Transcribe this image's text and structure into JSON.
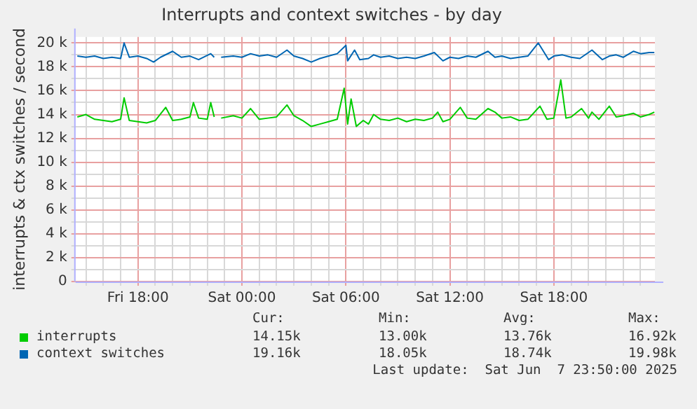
{
  "chart_data": {
    "type": "line",
    "title": "Interrupts and context switches - by day",
    "ylabel": "interrupts & ctx switches / second",
    "xlim": [
      "2025-06-06T14:24",
      "2025-06-07T23:50"
    ],
    "xticks": [
      {
        "value": "2025-06-06T15:00",
        "label": null
      },
      {
        "value": "2025-06-06T16:00",
        "label": null
      },
      {
        "value": "2025-06-06T17:00",
        "label": null
      },
      {
        "value": "2025-06-06T18:00",
        "label": "Fri 18:00"
      },
      {
        "value": "2025-06-06T19:00",
        "label": null
      },
      {
        "value": "2025-06-06T20:00",
        "label": null
      },
      {
        "value": "2025-06-06T21:00",
        "label": null
      },
      {
        "value": "2025-06-06T22:00",
        "label": null
      },
      {
        "value": "2025-06-06T23:00",
        "label": null
      },
      {
        "value": "2025-06-07T00:00",
        "label": "Sat 00:00"
      },
      {
        "value": "2025-06-07T01:00",
        "label": null
      },
      {
        "value": "2025-06-07T02:00",
        "label": null
      },
      {
        "value": "2025-06-07T03:00",
        "label": null
      },
      {
        "value": "2025-06-07T04:00",
        "label": null
      },
      {
        "value": "2025-06-07T05:00",
        "label": null
      },
      {
        "value": "2025-06-07T06:00",
        "label": "Sat 06:00"
      },
      {
        "value": "2025-06-07T07:00",
        "label": null
      },
      {
        "value": "2025-06-07T08:00",
        "label": null
      },
      {
        "value": "2025-06-07T09:00",
        "label": null
      },
      {
        "value": "2025-06-07T10:00",
        "label": null
      },
      {
        "value": "2025-06-07T11:00",
        "label": null
      },
      {
        "value": "2025-06-07T12:00",
        "label": "Sat 12:00"
      },
      {
        "value": "2025-06-07T13:00",
        "label": null
      },
      {
        "value": "2025-06-07T14:00",
        "label": null
      },
      {
        "value": "2025-06-07T15:00",
        "label": null
      },
      {
        "value": "2025-06-07T16:00",
        "label": null
      },
      {
        "value": "2025-06-07T17:00",
        "label": null
      },
      {
        "value": "2025-06-07T18:00",
        "label": "Sat 18:00"
      },
      {
        "value": "2025-06-07T19:00",
        "label": null
      },
      {
        "value": "2025-06-07T20:00",
        "label": null
      },
      {
        "value": "2025-06-07T21:00",
        "label": null
      },
      {
        "value": "2025-06-07T22:00",
        "label": null
      },
      {
        "value": "2025-06-07T23:00",
        "label": null
      }
    ],
    "ylim": [
      0,
      20500
    ],
    "yticks": [
      {
        "value": 0,
        "label": "0"
      },
      {
        "value": 1000,
        "label": null
      },
      {
        "value": 2000,
        "label": "2 k"
      },
      {
        "value": 3000,
        "label": null
      },
      {
        "value": 4000,
        "label": "4 k"
      },
      {
        "value": 5000,
        "label": null
      },
      {
        "value": 6000,
        "label": "6 k"
      },
      {
        "value": 7000,
        "label": null
      },
      {
        "value": 8000,
        "label": "8 k"
      },
      {
        "value": 9000,
        "label": null
      },
      {
        "value": 10000,
        "label": "10 k"
      },
      {
        "value": 11000,
        "label": null
      },
      {
        "value": 12000,
        "label": "12 k"
      },
      {
        "value": 13000,
        "label": null
      },
      {
        "value": 14000,
        "label": "14 k"
      },
      {
        "value": 15000,
        "label": null
      },
      {
        "value": 16000,
        "label": "16 k"
      },
      {
        "value": 17000,
        "label": null
      },
      {
        "value": 18000,
        "label": "18 k"
      },
      {
        "value": 19000,
        "label": null
      },
      {
        "value": 20000,
        "label": "20 k"
      }
    ],
    "grid": true,
    "legend": "bottom",
    "series": [
      {
        "name": "interrupts",
        "color": "#00cc00",
        "x": [
          "2025-06-06T14:30",
          "2025-06-06T15:00",
          "2025-06-06T15:30",
          "2025-06-06T16:00",
          "2025-06-06T16:30",
          "2025-06-06T17:00",
          "2025-06-06T17:12",
          "2025-06-06T17:30",
          "2025-06-06T18:00",
          "2025-06-06T18:30",
          "2025-06-06T19:00",
          "2025-06-06T19:36",
          "2025-06-06T20:00",
          "2025-06-06T20:30",
          "2025-06-06T21:00",
          "2025-06-06T21:12",
          "2025-06-06T21:30",
          "2025-06-06T22:00",
          "2025-06-06T22:12",
          "2025-06-06T22:24",
          "2025-06-06T22:36",
          "2025-06-06T22:48",
          "2025-06-06T23:30",
          "2025-06-07T00:00",
          "2025-06-07T00:30",
          "2025-06-07T01:00",
          "2025-06-07T01:30",
          "2025-06-07T02:00",
          "2025-06-07T02:36",
          "2025-06-07T03:00",
          "2025-06-07T03:30",
          "2025-06-07T04:00",
          "2025-06-07T04:30",
          "2025-06-07T05:00",
          "2025-06-07T05:30",
          "2025-06-07T05:54",
          "2025-06-07T06:06",
          "2025-06-07T06:18",
          "2025-06-07T06:36",
          "2025-06-07T07:00",
          "2025-06-07T07:18",
          "2025-06-07T07:36",
          "2025-06-07T08:00",
          "2025-06-07T08:30",
          "2025-06-07T09:00",
          "2025-06-07T09:30",
          "2025-06-07T10:00",
          "2025-06-07T10:30",
          "2025-06-07T11:00",
          "2025-06-07T11:18",
          "2025-06-07T11:36",
          "2025-06-07T12:00",
          "2025-06-07T12:36",
          "2025-06-07T13:00",
          "2025-06-07T13:30",
          "2025-06-07T14:12",
          "2025-06-07T14:36",
          "2025-06-07T15:00",
          "2025-06-07T15:30",
          "2025-06-07T16:00",
          "2025-06-07T16:30",
          "2025-06-07T17:12",
          "2025-06-07T17:36",
          "2025-06-07T18:00",
          "2025-06-07T18:24",
          "2025-06-07T18:42",
          "2025-06-07T19:00",
          "2025-06-07T19:36",
          "2025-06-07T20:00",
          "2025-06-07T20:12",
          "2025-06-07T20:36",
          "2025-06-07T21:12",
          "2025-06-07T21:36",
          "2025-06-07T22:00",
          "2025-06-07T22:36",
          "2025-06-07T23:00",
          "2025-06-07T23:30",
          "2025-06-07T23:48"
        ],
        "values": [
          13800,
          14000,
          13600,
          13500,
          13400,
          13600,
          15400,
          13500,
          13400,
          13300,
          13500,
          14600,
          13500,
          13600,
          13800,
          15000,
          13700,
          13600,
          15000,
          13800,
          null,
          13700,
          13900,
          13700,
          14500,
          13600,
          13700,
          13800,
          14800,
          13900,
          13500,
          13000,
          13200,
          13400,
          13600,
          16200,
          13200,
          15300,
          13000,
          13500,
          13200,
          14000,
          13600,
          13500,
          13700,
          13400,
          13600,
          13500,
          13700,
          14200,
          13400,
          13600,
          14600,
          13700,
          13600,
          14500,
          14200,
          13700,
          13800,
          13500,
          13600,
          14700,
          13600,
          13700,
          16900,
          13700,
          13800,
          14500,
          13700,
          14200,
          13600,
          14700,
          13800,
          13900,
          14100,
          13800,
          14000,
          14200
        ]
      },
      {
        "name": "context switches",
        "color": "#0066b3",
        "x": [
          "2025-06-06T14:30",
          "2025-06-06T15:00",
          "2025-06-06T15:30",
          "2025-06-06T16:00",
          "2025-06-06T16:30",
          "2025-06-06T17:00",
          "2025-06-06T17:12",
          "2025-06-06T17:30",
          "2025-06-06T18:00",
          "2025-06-06T18:30",
          "2025-06-06T18:54",
          "2025-06-06T19:18",
          "2025-06-06T20:00",
          "2025-06-06T20:30",
          "2025-06-06T21:00",
          "2025-06-06T21:30",
          "2025-06-06T22:12",
          "2025-06-06T22:24",
          "2025-06-06T22:36",
          "2025-06-06T22:48",
          "2025-06-06T23:30",
          "2025-06-07T00:00",
          "2025-06-07T00:30",
          "2025-06-07T01:00",
          "2025-06-07T01:30",
          "2025-06-07T02:00",
          "2025-06-07T02:36",
          "2025-06-07T03:00",
          "2025-06-07T03:30",
          "2025-06-07T04:00",
          "2025-06-07T04:30",
          "2025-06-07T05:00",
          "2025-06-07T05:30",
          "2025-06-07T06:00",
          "2025-06-07T06:06",
          "2025-06-07T06:30",
          "2025-06-07T06:48",
          "2025-06-07T07:18",
          "2025-06-07T07:36",
          "2025-06-07T08:00",
          "2025-06-07T08:30",
          "2025-06-07T09:00",
          "2025-06-07T09:30",
          "2025-06-07T10:00",
          "2025-06-07T10:30",
          "2025-06-07T11:06",
          "2025-06-07T11:36",
          "2025-06-07T12:00",
          "2025-06-07T12:30",
          "2025-06-07T13:00",
          "2025-06-07T13:30",
          "2025-06-07T14:12",
          "2025-06-07T14:36",
          "2025-06-07T15:00",
          "2025-06-07T15:30",
          "2025-06-07T16:00",
          "2025-06-07T16:30",
          "2025-06-07T17:06",
          "2025-06-07T17:42",
          "2025-06-07T18:00",
          "2025-06-07T18:30",
          "2025-06-07T19:00",
          "2025-06-07T19:30",
          "2025-06-07T20:12",
          "2025-06-07T20:48",
          "2025-06-07T21:12",
          "2025-06-07T21:36",
          "2025-06-07T22:00",
          "2025-06-07T22:36",
          "2025-06-07T23:00",
          "2025-06-07T23:30",
          "2025-06-07T23:48"
        ],
        "values": [
          18900,
          18800,
          18900,
          18700,
          18800,
          18700,
          20000,
          18800,
          18900,
          18700,
          18400,
          18800,
          19300,
          18800,
          18900,
          18600,
          19100,
          18800,
          null,
          18800,
          18900,
          18800,
          19100,
          18900,
          19000,
          18800,
          19400,
          18900,
          18700,
          18400,
          18700,
          18900,
          19100,
          19800,
          18500,
          19400,
          18600,
          18700,
          19000,
          18800,
          18900,
          18700,
          18800,
          18700,
          18900,
          19200,
          18500,
          18800,
          18700,
          18900,
          18800,
          19300,
          18800,
          18900,
          18700,
          18800,
          18900,
          20000,
          18600,
          18900,
          19000,
          18800,
          18700,
          19400,
          18600,
          18900,
          19000,
          18800,
          19300,
          19100,
          19200,
          19200
        ]
      }
    ],
    "annotations": [
      "Cur:",
      "Min:",
      "Avg:",
      "Max:",
      "14.15k",
      "13.00k",
      "13.76k",
      "16.92k",
      "19.16k",
      "18.05k",
      "18.74k",
      "19.98k",
      "Last update:  Sat Jun  7 23:50:00 2025"
    ]
  }
}
